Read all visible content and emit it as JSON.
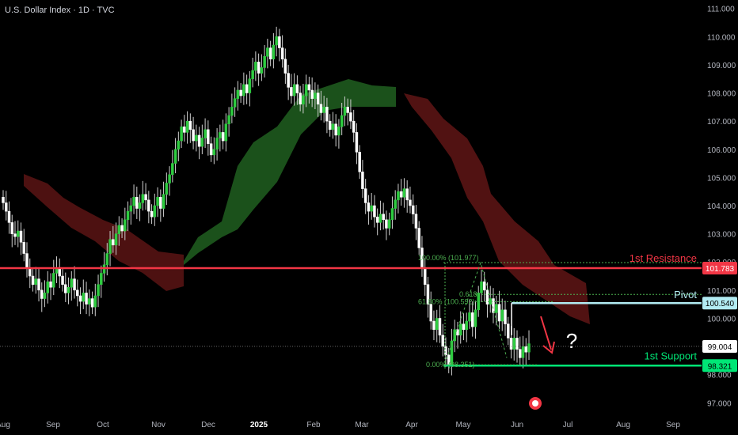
{
  "header": {
    "title": "U.S. Dollar Index · 1D · TVC"
  },
  "chart_data": {
    "type": "candlestick",
    "y_ticks": [
      "111.000",
      "110.000",
      "109.000",
      "108.000",
      "107.000",
      "106.000",
      "105.000",
      "104.000",
      "103.000",
      "102.000",
      "101.000",
      "100.000",
      "99.000",
      "98.000",
      "97.000"
    ],
    "x_ticks": [
      "Aug",
      "Sep",
      "Oct",
      "Nov",
      "Dec",
      "2025",
      "Feb",
      "Mar",
      "Apr",
      "May",
      "Jun",
      "Jul",
      "Aug",
      "Sep"
    ],
    "series": [
      {
        "type": "candles",
        "close": [
          104.1,
          103.8,
          103.4,
          103.0,
          102.9,
          103.1,
          102.7,
          102.3,
          101.8,
          101.5,
          101.2,
          101.4,
          101.0,
          100.7,
          100.9,
          101.3,
          101.1,
          101.6,
          101.8,
          101.5,
          101.2,
          100.9,
          101.1,
          101.4,
          101.0,
          100.8,
          100.6,
          100.9,
          100.5,
          100.7,
          100.4,
          100.8,
          101.2,
          101.6,
          101.9,
          102.3,
          102.8,
          102.6,
          103.0,
          103.3,
          103.1,
          103.5,
          103.8,
          104.0,
          104.3,
          103.9,
          104.1,
          104.4,
          104.2,
          103.8,
          103.6,
          104.0,
          104.3,
          103.9,
          104.4,
          104.8,
          105.1,
          105.5,
          106.0,
          106.3,
          106.8,
          106.6,
          107.0,
          106.7,
          106.3,
          106.5,
          106.1,
          106.4,
          106.7,
          106.2,
          105.8,
          106.0,
          106.4,
          106.6,
          106.3,
          106.9,
          107.2,
          107.5,
          107.8,
          108.1,
          107.9,
          108.3,
          108.0,
          108.5,
          108.8,
          109.1,
          108.7,
          108.9,
          109.3,
          109.6,
          109.2,
          109.7,
          110.0,
          109.6,
          109.2,
          108.7,
          108.2,
          107.9,
          108.3,
          108.0,
          107.6,
          107.9,
          108.3,
          108.1,
          107.8,
          108.0,
          107.6,
          107.3,
          107.5,
          107.0,
          106.7,
          106.9,
          106.5,
          106.8,
          107.2,
          107.5,
          107.3,
          107.0,
          106.6,
          105.9,
          105.2,
          104.6,
          104.1,
          103.8,
          104.0,
          103.6,
          103.4,
          103.7,
          103.5,
          103.2,
          103.5,
          103.9,
          104.2,
          104.5,
          104.3,
          104.6,
          104.2,
          104.0,
          103.7,
          103.2,
          102.5,
          101.8,
          101.2,
          100.5,
          99.9,
          99.6,
          100.0,
          99.4,
          99.0,
          98.7,
          98.3,
          99.2,
          99.6,
          99.4,
          99.8,
          99.6,
          99.9,
          100.2,
          99.7,
          100.3,
          100.9,
          101.3,
          101.0,
          100.5,
          100.7,
          100.2,
          100.5,
          99.9,
          100.3,
          99.8,
          99.3,
          98.9,
          99.3,
          98.9,
          98.6,
          99.0,
          98.8,
          99.1
        ]
      }
    ],
    "annotations": {
      "resistance_label": "1st Resistance",
      "pivot_label": "Pivot",
      "support_label": "1st Support",
      "resistance_value": "101.783",
      "pivot_value": "100.540",
      "support_value": "98.321",
      "last_price": "99.004",
      "fib_100": "100.00% (101.977)",
      "fib_618": "0.618",
      "fib_61": "61.80% (100.592)",
      "fib_0": "0.00% (98.351)",
      "question": "?"
    },
    "colors": {
      "background": "#000000",
      "candle_up": "#ffffff",
      "candle_down": "#ffffff",
      "cloud_bull": "#1e5a1e",
      "cloud_bear": "#5a1414",
      "resistance": "#f23645",
      "pivot": "#b2ebf2",
      "support": "#00e676",
      "axis_text": "#b2b5be"
    },
    "y_range": [
      96.7,
      111.3
    ]
  }
}
